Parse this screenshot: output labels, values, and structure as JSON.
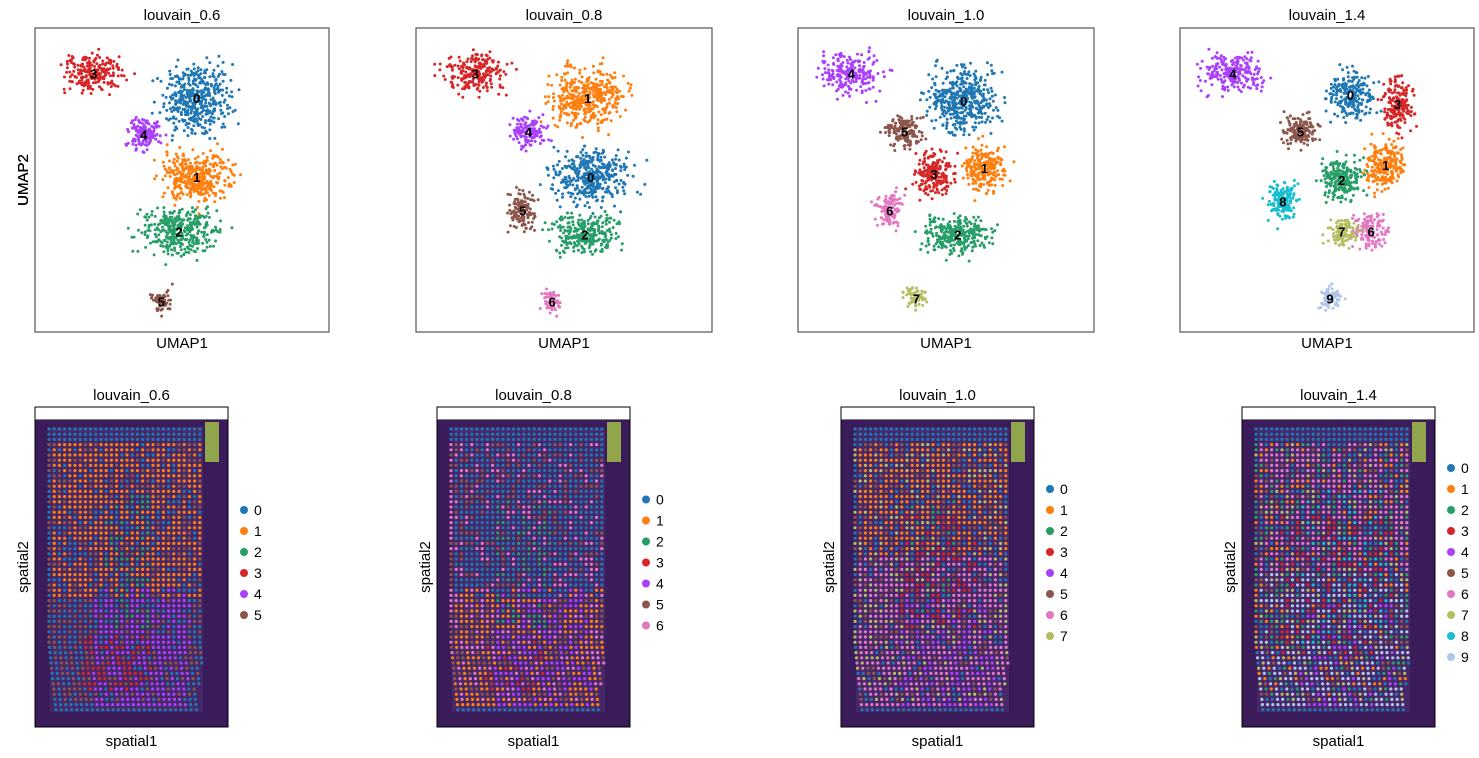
{
  "palette": [
    "#1f77b4",
    "#ff7f0e",
    "#279e68",
    "#d62728",
    "#aa40fc",
    "#8c564b",
    "#e377c2",
    "#b5bd61",
    "#17becf",
    "#aec7e8"
  ],
  "chart_data": [
    {
      "type": "scatter",
      "panel": "umap",
      "title": "louvain_0.6",
      "xlabel": "UMAP1",
      "ylabel": "UMAP2",
      "grid": false,
      "clusters": [
        {
          "label": "0",
          "cx": 0.55,
          "cy": 0.23,
          "rx": 0.18,
          "ry": 0.17,
          "n": 420
        },
        {
          "label": "1",
          "cx": 0.55,
          "cy": 0.49,
          "rx": 0.18,
          "ry": 0.13,
          "n": 360
        },
        {
          "label": "2",
          "cx": 0.49,
          "cy": 0.67,
          "rx": 0.2,
          "ry": 0.12,
          "n": 340
        },
        {
          "label": "3",
          "cx": 0.2,
          "cy": 0.15,
          "rx": 0.16,
          "ry": 0.1,
          "n": 220
        },
        {
          "label": "4",
          "cx": 0.37,
          "cy": 0.35,
          "rx": 0.09,
          "ry": 0.08,
          "n": 140
        },
        {
          "label": "5",
          "cx": 0.43,
          "cy": 0.9,
          "rx": 0.05,
          "ry": 0.06,
          "n": 60
        }
      ]
    },
    {
      "type": "scatter",
      "panel": "umap",
      "title": "louvain_0.8",
      "xlabel": "UMAP1",
      "ylabel": "UMAP2",
      "grid": false,
      "clusters": [
        {
          "label": "0",
          "cx": 0.59,
          "cy": 0.49,
          "rx": 0.2,
          "ry": 0.14,
          "n": 380
        },
        {
          "label": "1",
          "cx": 0.58,
          "cy": 0.23,
          "rx": 0.19,
          "ry": 0.15,
          "n": 400
        },
        {
          "label": "2",
          "cx": 0.57,
          "cy": 0.68,
          "rx": 0.17,
          "ry": 0.1,
          "n": 260
        },
        {
          "label": "3",
          "cx": 0.2,
          "cy": 0.15,
          "rx": 0.16,
          "ry": 0.1,
          "n": 220
        },
        {
          "label": "4",
          "cx": 0.38,
          "cy": 0.34,
          "rx": 0.09,
          "ry": 0.08,
          "n": 140
        },
        {
          "label": "5",
          "cx": 0.36,
          "cy": 0.6,
          "rx": 0.07,
          "ry": 0.1,
          "n": 120
        },
        {
          "label": "6",
          "cx": 0.46,
          "cy": 0.9,
          "rx": 0.05,
          "ry": 0.06,
          "n": 60
        }
      ]
    },
    {
      "type": "scatter",
      "panel": "umap",
      "title": "louvain_1.0",
      "xlabel": "UMAP1",
      "ylabel": "UMAP2",
      "grid": false,
      "clusters": [
        {
          "label": "0",
          "cx": 0.56,
          "cy": 0.24,
          "rx": 0.18,
          "ry": 0.17,
          "n": 420
        },
        {
          "label": "1",
          "cx": 0.63,
          "cy": 0.46,
          "rx": 0.11,
          "ry": 0.12,
          "n": 220
        },
        {
          "label": "2",
          "cx": 0.54,
          "cy": 0.68,
          "rx": 0.18,
          "ry": 0.1,
          "n": 280
        },
        {
          "label": "3",
          "cx": 0.46,
          "cy": 0.48,
          "rx": 0.1,
          "ry": 0.11,
          "n": 200
        },
        {
          "label": "4",
          "cx": 0.18,
          "cy": 0.15,
          "rx": 0.16,
          "ry": 0.1,
          "n": 220
        },
        {
          "label": "5",
          "cx": 0.36,
          "cy": 0.34,
          "rx": 0.1,
          "ry": 0.08,
          "n": 150
        },
        {
          "label": "6",
          "cx": 0.31,
          "cy": 0.6,
          "rx": 0.07,
          "ry": 0.1,
          "n": 120
        },
        {
          "label": "7",
          "cx": 0.4,
          "cy": 0.89,
          "rx": 0.06,
          "ry": 0.05,
          "n": 60
        }
      ]
    },
    {
      "type": "scatter",
      "panel": "umap",
      "title": "louvain_1.4",
      "xlabel": "UMAP1",
      "ylabel": "UMAP2",
      "grid": false,
      "clusters": [
        {
          "label": "0",
          "cx": 0.58,
          "cy": 0.22,
          "rx": 0.12,
          "ry": 0.12,
          "n": 220
        },
        {
          "label": "1",
          "cx": 0.7,
          "cy": 0.45,
          "rx": 0.1,
          "ry": 0.12,
          "n": 220
        },
        {
          "label": "2",
          "cx": 0.55,
          "cy": 0.5,
          "rx": 0.11,
          "ry": 0.11,
          "n": 220
        },
        {
          "label": "3",
          "cx": 0.74,
          "cy": 0.25,
          "rx": 0.08,
          "ry": 0.13,
          "n": 180
        },
        {
          "label": "4",
          "cx": 0.18,
          "cy": 0.15,
          "rx": 0.16,
          "ry": 0.1,
          "n": 220
        },
        {
          "label": "5",
          "cx": 0.41,
          "cy": 0.34,
          "rx": 0.1,
          "ry": 0.08,
          "n": 150
        },
        {
          "label": "6",
          "cx": 0.65,
          "cy": 0.67,
          "rx": 0.09,
          "ry": 0.09,
          "n": 130
        },
        {
          "label": "7",
          "cx": 0.55,
          "cy": 0.67,
          "rx": 0.08,
          "ry": 0.07,
          "n": 110
        },
        {
          "label": "8",
          "cx": 0.35,
          "cy": 0.57,
          "rx": 0.08,
          "ry": 0.1,
          "n": 150
        },
        {
          "label": "9",
          "cx": 0.51,
          "cy": 0.89,
          "rx": 0.06,
          "ry": 0.06,
          "n": 80
        }
      ]
    },
    {
      "type": "scatter",
      "panel": "spatial",
      "title": "louvain_0.6",
      "xlabel": "spatial1",
      "ylabel": "spatial2",
      "grid": false,
      "legend": "right",
      "legend_entries": [
        "0",
        "1",
        "2",
        "3",
        "4",
        "5"
      ],
      "regions": [
        {
          "label": "1",
          "x0": 0.08,
          "x1": 0.92,
          "y0": 0.04,
          "y1": 0.6,
          "w": 3
        },
        {
          "label": "2",
          "x0": 0.35,
          "x1": 0.6,
          "y0": 0.2,
          "y1": 0.7,
          "w": 2
        },
        {
          "label": "4",
          "x0": 0.3,
          "x1": 0.8,
          "y0": 0.55,
          "y1": 0.97,
          "w": 3
        },
        {
          "label": "3",
          "x0": 0.25,
          "x1": 0.6,
          "y0": 0.72,
          "y1": 0.92,
          "w": 3
        },
        {
          "label": "5",
          "x0": 0.05,
          "x1": 0.95,
          "y0": 0.05,
          "y1": 0.95,
          "w": 1
        },
        {
          "label": "0",
          "x0": 0.05,
          "x1": 0.95,
          "y0": 0.05,
          "y1": 0.95,
          "w": 1
        }
      ]
    },
    {
      "type": "scatter",
      "panel": "spatial",
      "title": "louvain_0.8",
      "xlabel": "spatial1",
      "ylabel": "spatial2",
      "grid": false,
      "legend": "right",
      "legend_entries": [
        "0",
        "1",
        "2",
        "3",
        "4",
        "5",
        "6"
      ],
      "regions": [
        {
          "label": "0",
          "x0": 0.08,
          "x1": 0.92,
          "y0": 0.04,
          "y1": 0.6,
          "w": 3
        },
        {
          "label": "1",
          "x0": 0.08,
          "x1": 0.92,
          "y0": 0.55,
          "y1": 0.97,
          "w": 2
        },
        {
          "label": "2",
          "x0": 0.3,
          "x1": 0.6,
          "y0": 0.25,
          "y1": 0.7,
          "w": 2
        },
        {
          "label": "4",
          "x0": 0.3,
          "x1": 0.8,
          "y0": 0.55,
          "y1": 0.97,
          "w": 2
        },
        {
          "label": "3",
          "x0": 0.25,
          "x1": 0.6,
          "y0": 0.72,
          "y1": 0.92,
          "w": 1
        },
        {
          "label": "5",
          "x0": 0.05,
          "x1": 0.95,
          "y0": 0.05,
          "y1": 0.95,
          "w": 1
        },
        {
          "label": "6",
          "x0": 0.05,
          "x1": 0.95,
          "y0": 0.05,
          "y1": 0.95,
          "w": 1
        }
      ]
    },
    {
      "type": "scatter",
      "panel": "spatial",
      "title": "louvain_1.0",
      "xlabel": "spatial1",
      "ylabel": "spatial2",
      "grid": false,
      "legend": "right",
      "legend_entries": [
        "0",
        "1",
        "2",
        "3",
        "4",
        "5",
        "6",
        "7"
      ],
      "regions": [
        {
          "label": "1",
          "x0": 0.08,
          "x1": 0.92,
          "y0": 0.04,
          "y1": 0.45,
          "w": 3
        },
        {
          "label": "3",
          "x0": 0.3,
          "x1": 0.7,
          "y0": 0.3,
          "y1": 0.7,
          "w": 2
        },
        {
          "label": "6",
          "x0": 0.08,
          "x1": 0.92,
          "y0": 0.45,
          "y1": 0.97,
          "w": 3
        },
        {
          "label": "4",
          "x0": 0.3,
          "x1": 0.8,
          "y0": 0.6,
          "y1": 0.97,
          "w": 2
        },
        {
          "label": "2",
          "x0": 0.35,
          "x1": 0.6,
          "y0": 0.25,
          "y1": 0.7,
          "w": 1
        },
        {
          "label": "0",
          "x0": 0.05,
          "x1": 0.95,
          "y0": 0.05,
          "y1": 0.95,
          "w": 1
        },
        {
          "label": "5",
          "x0": 0.05,
          "x1": 0.95,
          "y0": 0.05,
          "y1": 0.95,
          "w": 1
        },
        {
          "label": "7",
          "x0": 0.05,
          "x1": 0.95,
          "y0": 0.05,
          "y1": 0.95,
          "w": 1
        }
      ]
    },
    {
      "type": "scatter",
      "panel": "spatial",
      "title": "louvain_1.4",
      "xlabel": "spatial1",
      "ylabel": "spatial2",
      "grid": false,
      "legend": "right",
      "legend_entries": [
        "0",
        "1",
        "2",
        "3",
        "4",
        "5",
        "6",
        "7",
        "8",
        "9"
      ],
      "regions": [
        {
          "label": "6",
          "x0": 0.08,
          "x1": 0.92,
          "y0": 0.04,
          "y1": 0.5,
          "w": 3
        },
        {
          "label": "8",
          "x0": 0.3,
          "x1": 0.75,
          "y0": 0.2,
          "y1": 0.75,
          "w": 2
        },
        {
          "label": "3",
          "x0": 0.2,
          "x1": 0.8,
          "y0": 0.3,
          "y1": 0.8,
          "w": 2
        },
        {
          "label": "9",
          "x0": 0.08,
          "x1": 0.92,
          "y0": 0.5,
          "y1": 0.97,
          "w": 3
        },
        {
          "label": "4",
          "x0": 0.3,
          "x1": 0.8,
          "y0": 0.6,
          "y1": 0.97,
          "w": 2
        },
        {
          "label": "0",
          "x0": 0.05,
          "x1": 0.95,
          "y0": 0.05,
          "y1": 0.95,
          "w": 1
        },
        {
          "label": "1",
          "x0": 0.05,
          "x1": 0.95,
          "y0": 0.05,
          "y1": 0.95,
          "w": 1
        },
        {
          "label": "2",
          "x0": 0.05,
          "x1": 0.95,
          "y0": 0.05,
          "y1": 0.95,
          "w": 1
        },
        {
          "label": "5",
          "x0": 0.05,
          "x1": 0.95,
          "y0": 0.05,
          "y1": 0.95,
          "w": 1
        },
        {
          "label": "7",
          "x0": 0.05,
          "x1": 0.95,
          "y0": 0.05,
          "y1": 0.95,
          "w": 1
        }
      ]
    }
  ]
}
